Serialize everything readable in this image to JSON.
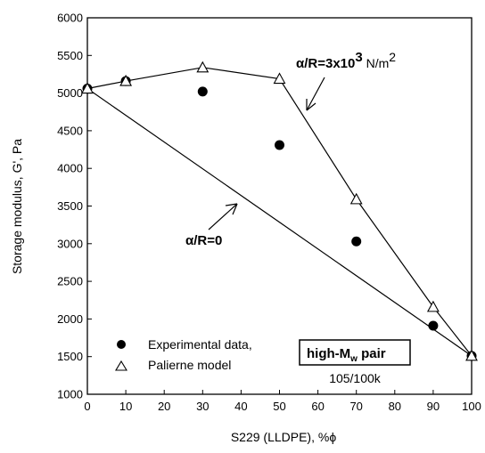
{
  "chart_data": {
    "type": "scatter",
    "xlabel": "S229 (LLDPE), %ϕ",
    "ylabel": "Storage modulus, G', Pa",
    "xlim": [
      0,
      100
    ],
    "ylim": [
      1000,
      6000
    ],
    "xticks": [
      0,
      10,
      20,
      30,
      40,
      50,
      60,
      70,
      80,
      90,
      100
    ],
    "yticks": [
      1000,
      1500,
      2000,
      2500,
      3000,
      3500,
      4000,
      4500,
      5000,
      5500,
      6000
    ],
    "grid": false,
    "series": [
      {
        "name": "Experimental data,",
        "marker": "filled-circle",
        "x": [
          0,
          10,
          30,
          50,
          70,
          90,
          100
        ],
        "y": [
          5060,
          5160,
          5020,
          4310,
          3030,
          1910,
          1510
        ]
      },
      {
        "name": "Palierne model",
        "marker": "open-triangle",
        "x": [
          0,
          10,
          30,
          50,
          70,
          90,
          100
        ],
        "y": [
          5060,
          5160,
          5340,
          5190,
          3590,
          2160,
          1510
        ]
      },
      {
        "name": "",
        "marker": "none",
        "line": "solid",
        "x": [
          0,
          100
        ],
        "y": [
          5060,
          1510
        ]
      }
    ],
    "annotations": {
      "upper_prefix": "α/R=3x10",
      "upper_exp": "3",
      "upper_unit": " N/m",
      "upper_unit_exp": "2",
      "lower": "α/R=0",
      "box_prefix": "high-M",
      "box_sub": "w",
      "box_suffix": " pair",
      "box_note": "105/100k"
    },
    "legend_position": "bottom-left"
  }
}
